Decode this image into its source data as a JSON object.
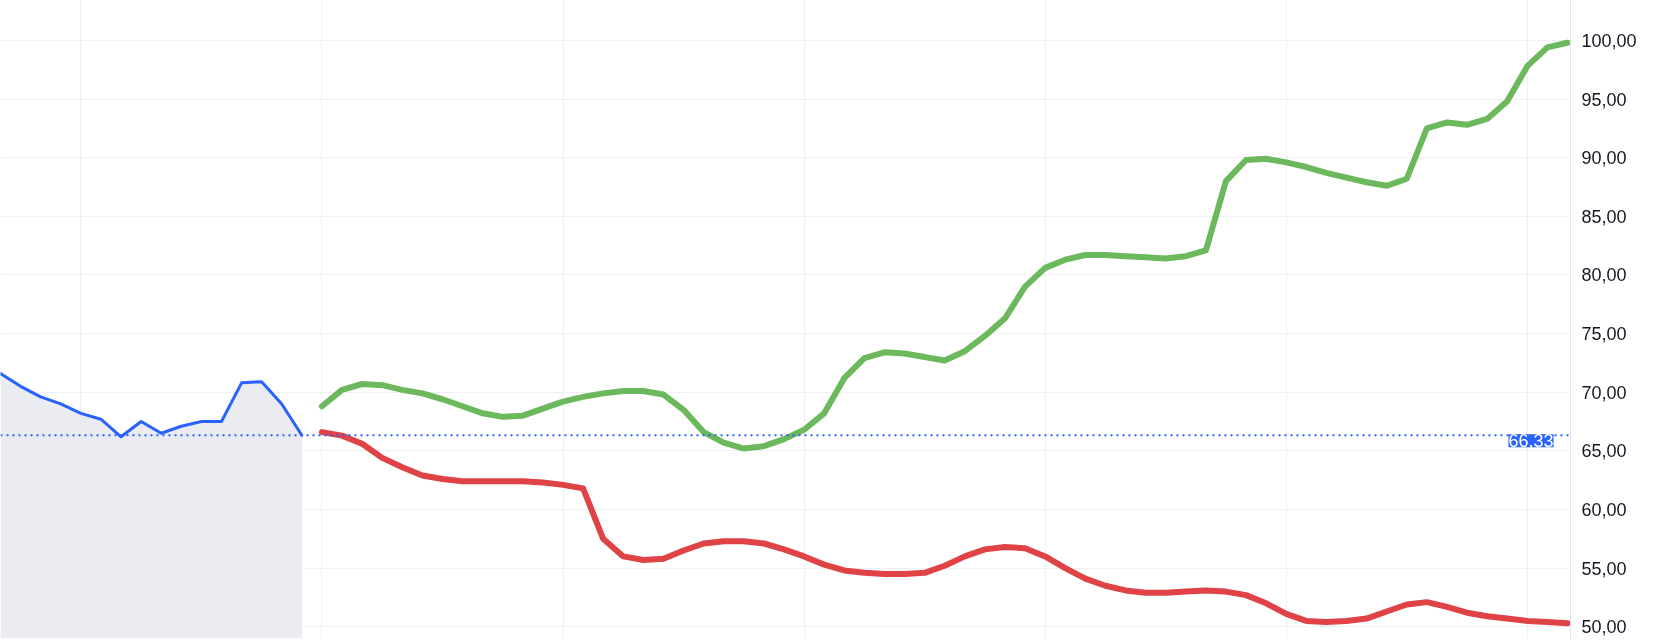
{
  "chart_data": {
    "type": "line",
    "categories": [
      null,
      null,
      null,
      null,
      null,
      null,
      null,
      null,
      null,
      null,
      null,
      null,
      null,
      null,
      null,
      null,
      null,
      null,
      null,
      null,
      null,
      null,
      null,
      null,
      null,
      null,
      null,
      null,
      null,
      null,
      null,
      null,
      null,
      null,
      null,
      null,
      null,
      null,
      null,
      null,
      null,
      null,
      null,
      null,
      null,
      null,
      null,
      null,
      null,
      null,
      null,
      null,
      null,
      null,
      null,
      null,
      null,
      null,
      null,
      null,
      null,
      null,
      null,
      null,
      null,
      null,
      null,
      null,
      null,
      null,
      null,
      null,
      null,
      null,
      null,
      null,
      null,
      null,
      null
    ],
    "series": [
      {
        "type": "area",
        "color": "#2962ff",
        "values": [
          71.6,
          70.5,
          69.6,
          69.0,
          68.2,
          67.7,
          66.2,
          67.5,
          66.5,
          67.1,
          67.5,
          67.5,
          70.8,
          70.9,
          69.0,
          66.33,
          null,
          null,
          null,
          null,
          null,
          null,
          null,
          null,
          null,
          null,
          null,
          null,
          null,
          null,
          null,
          null,
          null,
          null,
          null,
          null,
          null,
          null,
          null,
          null,
          null,
          null,
          null,
          null,
          null,
          null,
          null,
          null,
          null,
          null,
          null,
          null,
          null,
          null,
          null,
          null,
          null,
          null,
          null,
          null,
          null,
          null,
          null,
          null,
          null,
          null,
          null,
          null,
          null,
          null,
          null,
          null,
          null,
          null,
          null,
          null,
          null,
          null,
          null
        ]
      },
      {
        "color": "#6cb85c",
        "values": [
          null,
          null,
          null,
          null,
          null,
          null,
          null,
          null,
          null,
          null,
          null,
          null,
          null,
          null,
          null,
          null,
          68.8,
          70.2,
          70.7,
          70.6,
          70.2,
          69.9,
          69.4,
          68.8,
          68.2,
          67.9,
          68.0,
          68.6,
          69.2,
          69.6,
          69.9,
          70.1,
          70.1,
          69.8,
          68.5,
          66.6,
          65.7,
          65.2,
          65.4,
          66.0,
          66.8,
          68.2,
          71.2,
          72.9,
          73.4,
          73.3,
          73.0,
          72.7,
          73.5,
          74.8,
          76.3,
          79.0,
          80.6,
          81.3,
          81.7,
          81.7,
          81.6,
          81.5,
          81.4,
          81.6,
          82.1,
          88.0,
          89.8,
          89.9,
          89.6,
          89.2,
          88.7,
          88.3,
          87.9,
          87.6,
          88.2,
          92.5,
          93.0,
          92.8,
          93.3,
          94.8,
          97.8,
          99.4,
          99.8
        ]
      },
      {
        "color": "#e04346",
        "values": [
          null,
          null,
          null,
          null,
          null,
          null,
          null,
          null,
          null,
          null,
          null,
          null,
          null,
          null,
          null,
          null,
          66.6,
          66.3,
          65.6,
          64.4,
          63.6,
          62.9,
          62.6,
          62.4,
          62.4,
          62.4,
          62.4,
          62.3,
          62.1,
          61.8,
          57.5,
          56.0,
          55.7,
          55.8,
          56.5,
          57.1,
          57.3,
          57.3,
          57.1,
          56.6,
          56.0,
          55.3,
          54.8,
          54.6,
          54.5,
          54.5,
          54.6,
          55.2,
          56.0,
          56.6,
          56.8,
          56.7,
          56.0,
          55.0,
          54.1,
          53.5,
          53.1,
          52.9,
          52.9,
          53.0,
          53.1,
          53.0,
          52.7,
          52.0,
          51.1,
          50.5,
          50.4,
          50.5,
          50.7,
          51.3,
          51.9,
          52.1,
          51.7,
          51.2,
          50.9,
          50.7,
          50.5,
          50.4,
          50.3
        ]
      }
    ],
    "ylim": [
      49.0,
      103.4
    ],
    "yticks": [
      {
        "value": 50,
        "label": "50,00"
      },
      {
        "value": 55,
        "label": "55,00"
      },
      {
        "value": 60,
        "label": "60,00"
      },
      {
        "value": 65,
        "label": "65,00"
      },
      {
        "value": 70,
        "label": "70,00"
      },
      {
        "value": 75,
        "label": "75,00"
      },
      {
        "value": 80,
        "label": "80,00"
      },
      {
        "value": 85,
        "label": "85,00"
      },
      {
        "value": 90,
        "label": "90,00"
      },
      {
        "value": 95,
        "label": "95,00"
      },
      {
        "value": 100,
        "label": "100,00"
      }
    ],
    "ref_lines": [
      {
        "axis": "y",
        "value": 66.33,
        "label": "66,33",
        "color": "#2962ff",
        "line_style": "dotted"
      }
    ],
    "grid": true,
    "tick_labels": "y"
  }
}
